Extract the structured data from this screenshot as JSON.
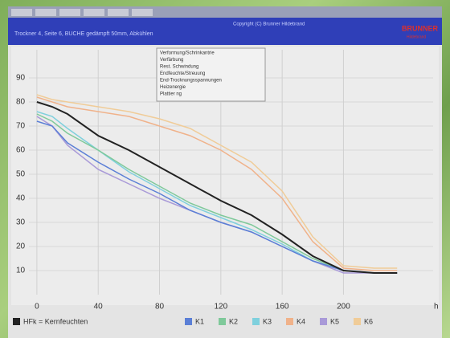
{
  "header": {
    "title": "Trockner 4, Seite 6, BUCHE gedämpft 50mm, Abkühlen",
    "copyright": "Copyright (C) Brunner Hildebrand",
    "logo": "BRUNNER",
    "logo_sub": "Hildebrand"
  },
  "chart_data": {
    "type": "line",
    "xlabel": "h",
    "annotations": [
      "Verformung/Schrinkantrie",
      "Verfärbung",
      "Rest. Schwindung",
      "Endfeuchte/Streuung",
      "End-Trocknungsspannungen",
      "Heizenergie",
      "Plattier ng"
    ],
    "x": [
      0,
      10,
      20,
      40,
      60,
      80,
      100,
      120,
      140,
      160,
      180,
      200,
      220,
      235
    ],
    "xlim": [
      -12,
      248
    ],
    "xticks": [
      0,
      40,
      80,
      120,
      160,
      200
    ],
    "ylim": [
      0,
      100
    ],
    "yticks": [
      10,
      20,
      30,
      40,
      50,
      60,
      70,
      80,
      90
    ],
    "grid": true,
    "series": [
      {
        "name": "HFk = Kernfeuchten",
        "color": "#222222",
        "values": [
          80,
          78,
          75,
          66,
          60,
          53,
          46,
          39,
          33,
          25,
          16,
          10,
          9,
          9
        ]
      },
      {
        "name": "K1",
        "color": "#5b7fd6",
        "values": [
          72,
          70,
          63,
          55,
          48,
          42,
          35,
          30,
          26,
          20,
          14,
          10,
          9,
          9
        ]
      },
      {
        "name": "K2",
        "color": "#7fc99a",
        "values": [
          75,
          72,
          67,
          60,
          52,
          45,
          38,
          33,
          29,
          22,
          15,
          10,
          9,
          9
        ]
      },
      {
        "name": "K3",
        "color": "#7fd0dd",
        "values": [
          76,
          74,
          69,
          60,
          51,
          44,
          37,
          32,
          27,
          21,
          14,
          10,
          9,
          9
        ]
      },
      {
        "name": "K4",
        "color": "#f0b28a",
        "values": [
          82,
          80,
          78,
          76,
          74,
          70,
          66,
          60,
          52,
          40,
          22,
          11,
          10,
          10
        ]
      },
      {
        "name": "K5",
        "color": "#a99ad8",
        "values": [
          74,
          70,
          62,
          52,
          46,
          40,
          35,
          30,
          26,
          20,
          14,
          9,
          9,
          9
        ]
      },
      {
        "name": "K6",
        "color": "#f0cc98",
        "values": [
          83,
          81,
          80,
          78,
          76,
          73,
          69,
          62,
          55,
          43,
          24,
          12,
          11,
          11
        ]
      }
    ]
  }
}
